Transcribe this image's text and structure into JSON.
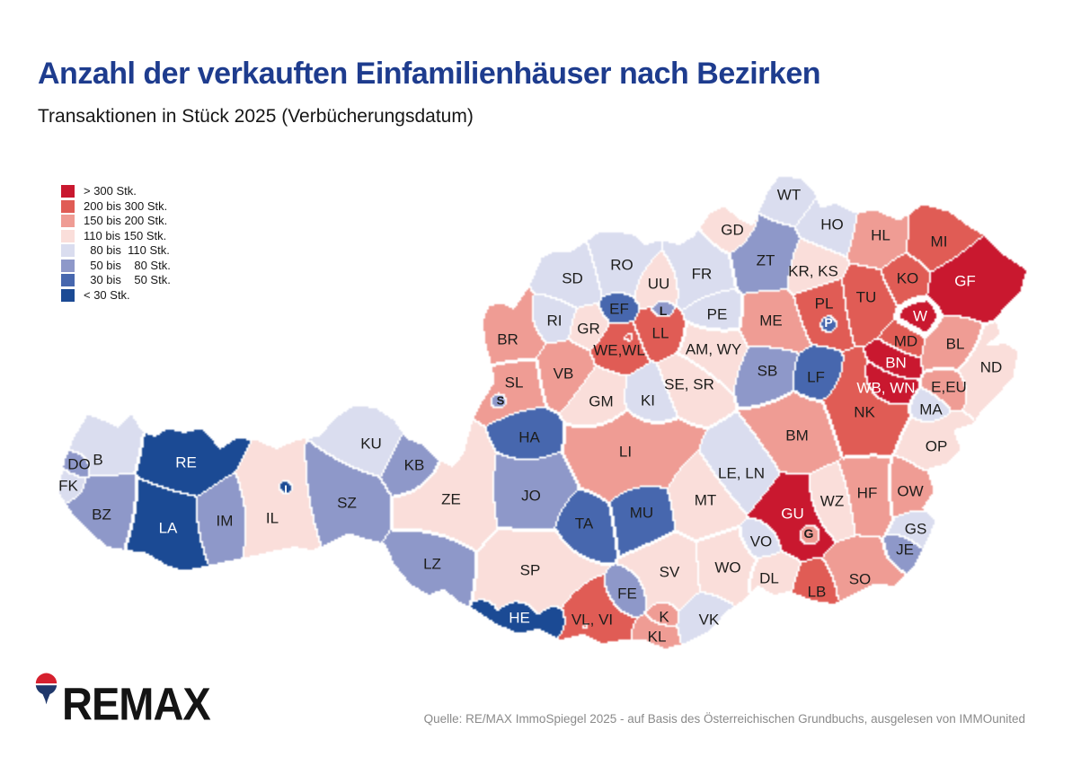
{
  "title": "Anzahl der verkauften Einfamilienhäuser nach Bezirken",
  "subtitle": "Transaktionen in Stück 2025 (Verbücherungsdatum)",
  "source": "Quelle: RE/MAX ImmoSpiegel 2025 - auf Basis des Österreichischen Grundbuchs, ausgelesen von IMMOunited",
  "logo": {
    "brand": "REMAX"
  },
  "legend": [
    {
      "label": "> 300 Stk.",
      "color": "#C9182F"
    },
    {
      "label": "200 bis 300 Stk.",
      "color": "#E05C55"
    },
    {
      "label": "150 bis 200 Stk.",
      "color": "#EF9C94"
    },
    {
      "label": "110 bis 150 Stk.",
      "color": "#FADEDA"
    },
    {
      "label": "  80 bis  110 Stk.",
      "color": "#DADDEF"
    },
    {
      "label": "  50 bis    80 Stk.",
      "color": "#8E98C9"
    },
    {
      "label": "  30 bis    50 Stk.",
      "color": "#4767AE"
    },
    {
      "label": "< 30 Stk.",
      "color": "#1B4A94"
    }
  ],
  "map": {
    "districts": [
      {
        "code": "B",
        "bucket": 5
      },
      {
        "code": "DO",
        "bucket": 6
      },
      {
        "code": "FK",
        "bucket": 5
      },
      {
        "code": "BZ",
        "bucket": 6
      },
      {
        "code": "RE",
        "bucket": 8
      },
      {
        "code": "LA",
        "bucket": 8
      },
      {
        "code": "IM",
        "bucket": 6
      },
      {
        "code": "I",
        "bucket": 8
      },
      {
        "code": "IL",
        "bucket": 4
      },
      {
        "code": "SZ",
        "bucket": 6
      },
      {
        "code": "KU",
        "bucket": 5
      },
      {
        "code": "KB",
        "bucket": 6
      },
      {
        "code": "LZ",
        "bucket": 6
      },
      {
        "code": "ZE",
        "bucket": 4
      },
      {
        "code": "JO",
        "bucket": 6
      },
      {
        "code": "TA",
        "bucket": 7
      },
      {
        "code": "HA",
        "bucket": 7
      },
      {
        "code": "S",
        "bucket": 6
      },
      {
        "code": "SL",
        "bucket": 3
      },
      {
        "code": "BR",
        "bucket": 3
      },
      {
        "code": "RI",
        "bucket": 5
      },
      {
        "code": "SD",
        "bucket": 5
      },
      {
        "code": "RO",
        "bucket": 5
      },
      {
        "code": "GR",
        "bucket": 4
      },
      {
        "code": "EF",
        "bucket": 7
      },
      {
        "code": "WE,WL",
        "bucket": 2
      },
      {
        "code": "LL",
        "bucket": 2
      },
      {
        "code": "L",
        "bucket": 6
      },
      {
        "code": "UU",
        "bucket": 4
      },
      {
        "code": "FR",
        "bucket": 5
      },
      {
        "code": "PE",
        "bucket": 5
      },
      {
        "code": "VB",
        "bucket": 3
      },
      {
        "code": "GM",
        "bucket": 4
      },
      {
        "code": "KI",
        "bucket": 5
      },
      {
        "code": "SE, SR",
        "bucket": 4
      },
      {
        "code": "AM, WY",
        "bucket": 4
      },
      {
        "code": "ME",
        "bucket": 3
      },
      {
        "code": "SB",
        "bucket": 6
      },
      {
        "code": "PL",
        "bucket": 2
      },
      {
        "code": "P",
        "bucket": 7
      },
      {
        "code": "TU",
        "bucket": 2
      },
      {
        "code": "KR, KS",
        "bucket": 4
      },
      {
        "code": "ZT",
        "bucket": 6
      },
      {
        "code": "GD",
        "bucket": 4
      },
      {
        "code": "WT",
        "bucket": 5
      },
      {
        "code": "HO",
        "bucket": 5
      },
      {
        "code": "HL",
        "bucket": 3
      },
      {
        "code": "MI",
        "bucket": 2
      },
      {
        "code": "KO",
        "bucket": 2
      },
      {
        "code": "GF",
        "bucket": 1
      },
      {
        "code": "MD",
        "bucket": 2
      },
      {
        "code": "BN",
        "bucket": 1
      },
      {
        "code": "WB, WN",
        "bucket": 1
      },
      {
        "code": "NK",
        "bucket": 2
      },
      {
        "code": "LF",
        "bucket": 7
      },
      {
        "code": "BL",
        "bucket": 3
      },
      {
        "code": "W",
        "bucket": 1
      },
      {
        "code": "ND",
        "bucket": 4
      },
      {
        "code": "E,EU",
        "bucket": 3
      },
      {
        "code": "MA",
        "bucket": 5
      },
      {
        "code": "OP",
        "bucket": 4
      },
      {
        "code": "OW",
        "bucket": 3
      },
      {
        "code": "GS",
        "bucket": 5
      },
      {
        "code": "JE",
        "bucket": 6
      },
      {
        "code": "LI",
        "bucket": 3
      },
      {
        "code": "LE, LN",
        "bucket": 5
      },
      {
        "code": "BM",
        "bucket": 3
      },
      {
        "code": "MT",
        "bucket": 4
      },
      {
        "code": "MU",
        "bucket": 7
      },
      {
        "code": "GU",
        "bucket": 1
      },
      {
        "code": "G",
        "bucket": 3
      },
      {
        "code": "WZ",
        "bucket": 4
      },
      {
        "code": "HF",
        "bucket": 3
      },
      {
        "code": "VO",
        "bucket": 5
      },
      {
        "code": "DL",
        "bucket": 4
      },
      {
        "code": "LB",
        "bucket": 2
      },
      {
        "code": "SO",
        "bucket": 3
      },
      {
        "code": "SP",
        "bucket": 4
      },
      {
        "code": "HE",
        "bucket": 8
      },
      {
        "code": "VL, VI",
        "bucket": 2
      },
      {
        "code": "FE",
        "bucket": 6
      },
      {
        "code": "SV",
        "bucket": 4
      },
      {
        "code": "WO",
        "bucket": 4
      },
      {
        "code": "K",
        "bucket": 3
      },
      {
        "code": "KL",
        "bucket": 3
      },
      {
        "code": "VK",
        "bucket": 5
      }
    ]
  }
}
